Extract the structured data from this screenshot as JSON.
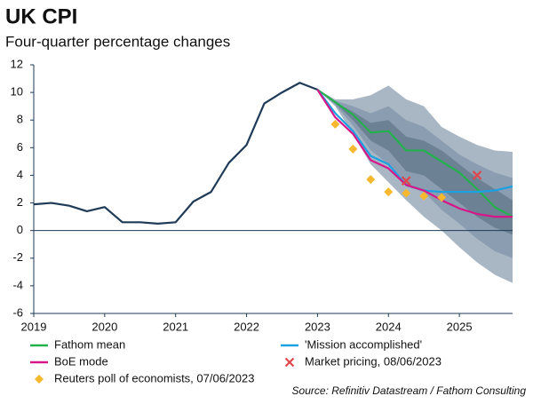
{
  "chart_data": {
    "type": "line",
    "title": "UK CPI",
    "subtitle": "Four-quarter percentage changes",
    "source": "Source: Refinitiv Datastream / Fathom Consulting",
    "xlim": [
      2019,
      2025.75
    ],
    "xticks": [
      2019,
      2020,
      2021,
      2022,
      2023,
      2024,
      2025
    ],
    "ylim": [
      -6,
      12
    ],
    "yticks": [
      -6,
      -4,
      -2,
      0,
      2,
      4,
      6,
      8,
      10,
      12
    ],
    "fan": {
      "x": [
        2023,
        2023.25,
        2023.5,
        2023.75,
        2024,
        2024.25,
        2024.5,
        2024.75,
        2025,
        2025.25,
        2025.5,
        2025.75
      ],
      "bands": [
        {
          "color": "#a9b7c5",
          "upper": [
            10.2,
            9.5,
            9.5,
            9.8,
            10.5,
            9.5,
            9.0,
            7.5,
            6.8,
            6.2,
            5.8,
            5.7
          ],
          "lower": [
            10.2,
            9.0,
            7.0,
            4.8,
            3.5,
            2.2,
            1.0,
            0,
            -1.2,
            -2.3,
            -3.2,
            -3.8
          ]
        },
        {
          "color": "#8b9db0",
          "upper": [
            10.2,
            9.4,
            9.0,
            8.5,
            9.0,
            8.0,
            7.5,
            6.5,
            5.5,
            4.8,
            4.2,
            3.8
          ],
          "lower": [
            10.2,
            9.1,
            7.6,
            5.8,
            4.8,
            3.2,
            2.8,
            1.5,
            0.5,
            -0.6,
            -1.5,
            -2.0
          ]
        },
        {
          "color": "#6d8195",
          "upper": [
            10.2,
            9.3,
            8.6,
            7.8,
            8.0,
            6.8,
            6.5,
            5.8,
            4.8,
            3.8,
            3.0,
            2.2
          ],
          "lower": [
            10.2,
            9.2,
            8.0,
            6.5,
            5.8,
            4.3,
            4.0,
            3.0,
            2.0,
            1.0,
            0.2,
            -0.3
          ]
        }
      ]
    },
    "series": [
      {
        "color": "#1f3b57",
        "kind": "line",
        "x": [
          2019,
          2019.25,
          2019.5,
          2019.75,
          2020,
          2020.25,
          2020.5,
          2020.75,
          2021,
          2021.25,
          2021.5,
          2021.75,
          2022,
          2022.25,
          2022.5,
          2022.75,
          2023
        ],
        "values": [
          1.9,
          2.0,
          1.8,
          1.4,
          1.7,
          0.6,
          0.6,
          0.5,
          0.6,
          2.1,
          2.8,
          4.9,
          6.2,
          9.2,
          10.0,
          10.7,
          10.2
        ]
      },
      {
        "name": "Fathom mean",
        "color": "#22b14c",
        "kind": "line",
        "legend": [
          0,
          0
        ],
        "x": [
          2023,
          2023.25,
          2023.5,
          2023.75,
          2024,
          2024.25,
          2024.5,
          2024.75,
          2025,
          2025.25,
          2025.5,
          2025.75
        ],
        "values": [
          10.2,
          9.3,
          8.4,
          7.1,
          7.2,
          5.8,
          5.8,
          5.0,
          4.2,
          3.0,
          1.7,
          1.0
        ]
      },
      {
        "name": "'Mission accomplished'",
        "color": "#1ba1e2",
        "kind": "line",
        "legend": [
          1,
          0
        ],
        "x": [
          2023,
          2023.25,
          2023.5,
          2023.75,
          2024,
          2024.25,
          2024.5,
          2024.75,
          2025,
          2025.25,
          2025.5,
          2025.75
        ],
        "values": [
          10.2,
          8.5,
          7.2,
          5.4,
          4.8,
          3.3,
          2.9,
          2.8,
          2.8,
          2.8,
          2.9,
          3.2
        ]
      },
      {
        "name": "BoE mode",
        "color": "#d6178a",
        "kind": "line",
        "legend": [
          0,
          1
        ],
        "x": [
          2023,
          2023.25,
          2023.5,
          2023.75,
          2024,
          2024.25,
          2024.5,
          2024.75,
          2025,
          2025.25,
          2025.5,
          2025.75
        ],
        "values": [
          10.2,
          8.2,
          7.0,
          5.1,
          4.5,
          3.3,
          2.9,
          2.2,
          1.6,
          1.2,
          1.0,
          1.0
        ]
      },
      {
        "name": "Market pricing, 08/06/2023",
        "color": "#e0474c",
        "kind": "cross",
        "legend": [
          1,
          1
        ],
        "x": [
          2024.25,
          2025.25
        ],
        "values": [
          3.6,
          4.0
        ]
      },
      {
        "name": "Reuters poll of economists, 07/06/2023",
        "color": "#f5b82e",
        "kind": "diamond",
        "legend": [
          0,
          2
        ],
        "x": [
          2023.25,
          2023.5,
          2023.75,
          2024,
          2024.25,
          2024.5,
          2024.75
        ],
        "values": [
          7.7,
          5.9,
          3.7,
          2.8,
          2.7,
          2.5,
          2.4
        ]
      }
    ]
  }
}
